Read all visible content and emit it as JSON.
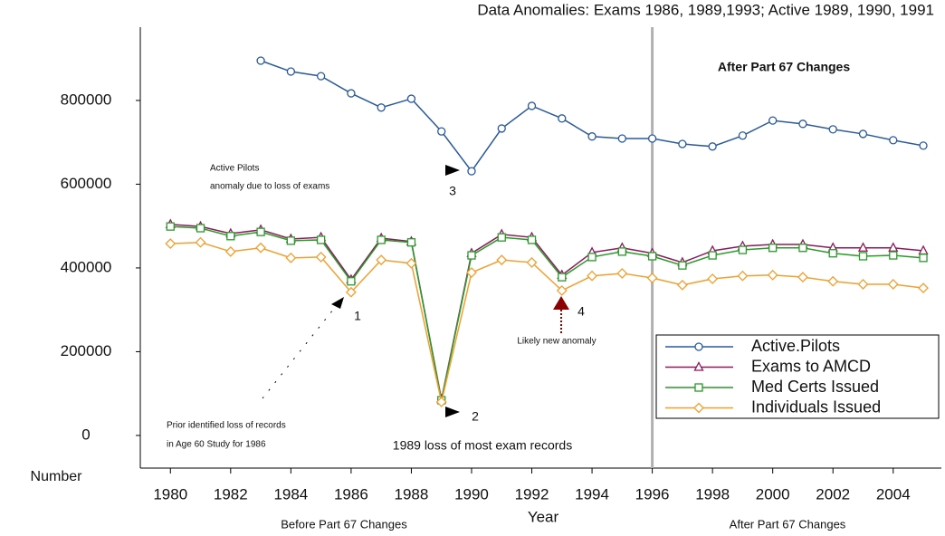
{
  "chart_data": {
    "type": "line",
    "title": "Data Anomalies: Exams 1986, 1989,1993; Active 1989, 1990, 1991",
    "x_label": "Year",
    "y_label": "Number",
    "x": [
      1980,
      1981,
      1982,
      1983,
      1984,
      1985,
      1986,
      1987,
      1988,
      1989,
      1990,
      1991,
      1992,
      1993,
      1994,
      1995,
      1996,
      1997,
      1998,
      1999,
      2000,
      2001,
      2002,
      2003,
      2004,
      2005
    ],
    "series": [
      {
        "name": "Active.Pilots",
        "color": "#2a5a9a",
        "marker": "circle",
        "values": [
          null,
          null,
          null,
          895000,
          869000,
          858000,
          817000,
          783000,
          804000,
          726000,
          631000,
          733000,
          787000,
          757000,
          714000,
          709000,
          709000,
          696000,
          690000,
          716000,
          752000,
          744000,
          731000,
          720000,
          705000,
          692000
        ]
      },
      {
        "name": "Exams to AMCD",
        "color": "#8b1a5a",
        "marker": "triangle",
        "values": [
          504000,
          499000,
          482000,
          491000,
          469000,
          473000,
          372000,
          471000,
          463000,
          86000,
          435000,
          480000,
          473000,
          383000,
          437000,
          448000,
          435000,
          413000,
          441000,
          452000,
          456000,
          456000,
          448000,
          448000,
          448000,
          441000
        ]
      },
      {
        "name": "Med Certs Issued",
        "color": "#2a9a2a",
        "marker": "square",
        "values": [
          499000,
          495000,
          476000,
          486000,
          465000,
          467000,
          368000,
          467000,
          461000,
          84000,
          430000,
          473000,
          467000,
          378000,
          426000,
          439000,
          428000,
          406000,
          430000,
          443000,
          448000,
          448000,
          435000,
          428000,
          430000,
          424000
        ]
      },
      {
        "name": "Individuals Issued",
        "color": "#f0a030",
        "marker": "diamond",
        "values": [
          458000,
          461000,
          439000,
          448000,
          424000,
          426000,
          342000,
          419000,
          411000,
          80000,
          389000,
          419000,
          413000,
          346000,
          381000,
          387000,
          376000,
          359000,
          374000,
          381000,
          383000,
          378000,
          368000,
          361000,
          361000,
          352000
        ]
      }
    ],
    "xlim": [
      1979,
      2005.6
    ],
    "ylim": [
      -78000,
      975000
    ],
    "xticks": [
      1980,
      1982,
      1984,
      1986,
      1988,
      1990,
      1992,
      1994,
      1996,
      1998,
      2000,
      2002,
      2004
    ],
    "yticks": [
      0,
      200000,
      400000,
      600000,
      800000
    ],
    "vline": 1996,
    "legend": "lower right",
    "annotations": [
      "After Part 67 Changes",
      "Active Pilots",
      "anomaly due to loss of exams",
      "3",
      "1",
      "2",
      "4",
      "Likely new anomaly",
      "Prior identified loss of records",
      "in Age 60 Study for 1986",
      "1989 loss of most exam records",
      "Before Part 67 Changes",
      "After Part 67 Changes"
    ]
  }
}
